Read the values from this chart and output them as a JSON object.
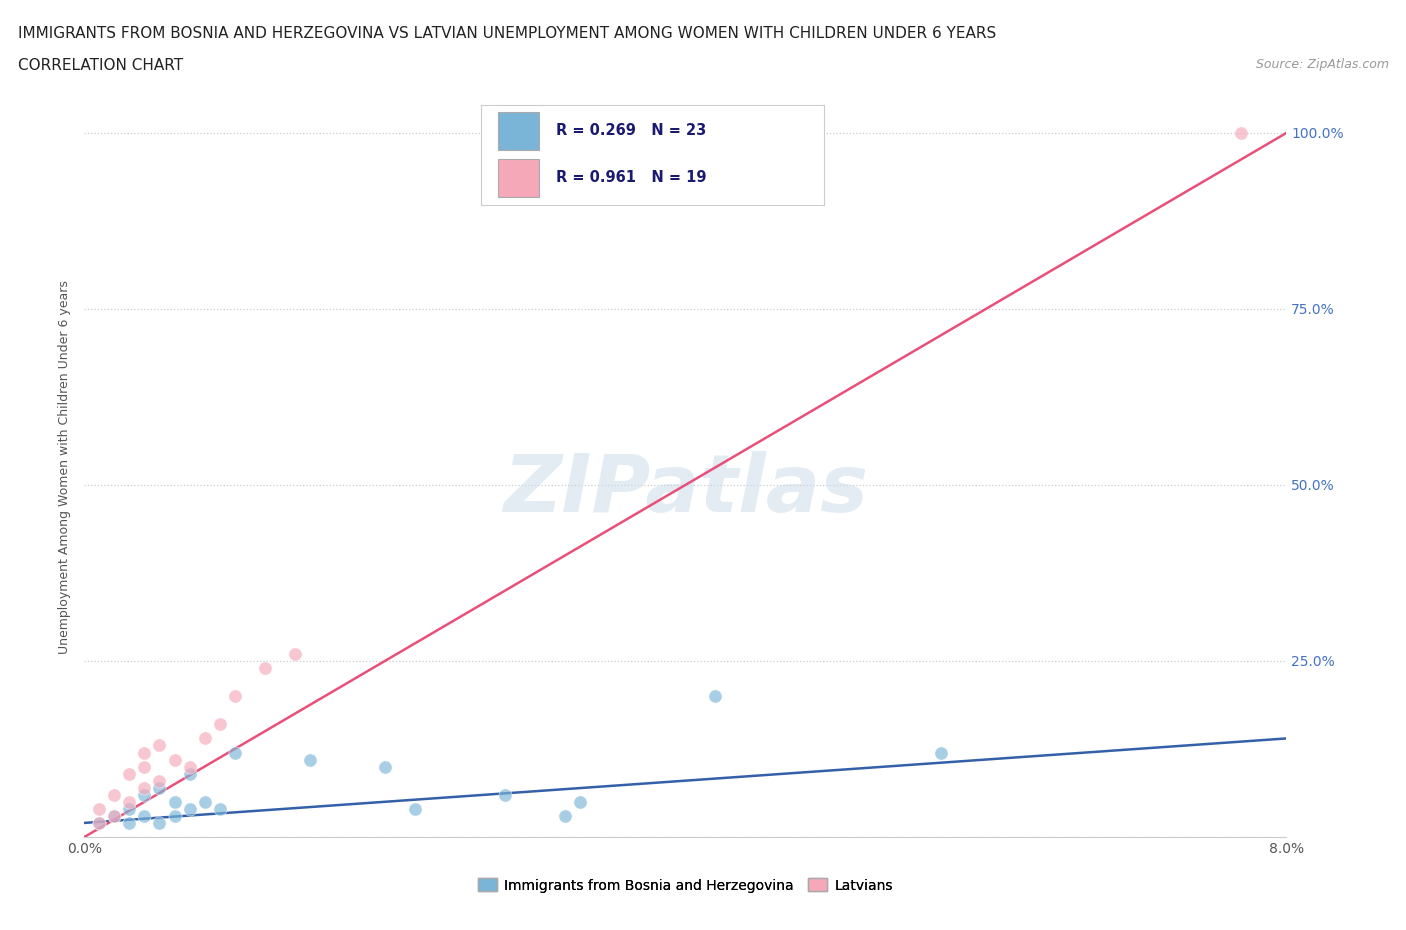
{
  "title": "IMMIGRANTS FROM BOSNIA AND HERZEGOVINA VS LATVIAN UNEMPLOYMENT AMONG WOMEN WITH CHILDREN UNDER 6 YEARS",
  "subtitle": "CORRELATION CHART",
  "source": "Source: ZipAtlas.com",
  "ylabel": "Unemployment Among Women with Children Under 6 years",
  "xlim": [
    0.0,
    0.08
  ],
  "ylim": [
    0.0,
    1.05
  ],
  "xtick_values": [
    0.0,
    0.01,
    0.02,
    0.03,
    0.04,
    0.05,
    0.06,
    0.07,
    0.08
  ],
  "ytick_values": [
    0.0,
    0.25,
    0.5,
    0.75,
    1.0
  ],
  "ytick_labels": [
    "",
    "25.0%",
    "50.0%",
    "75.0%",
    "100.0%"
  ],
  "blue_scatter_x": [
    0.001,
    0.002,
    0.003,
    0.003,
    0.004,
    0.004,
    0.005,
    0.005,
    0.006,
    0.006,
    0.007,
    0.007,
    0.008,
    0.009,
    0.01,
    0.015,
    0.02,
    0.022,
    0.028,
    0.032,
    0.033,
    0.042,
    0.057
  ],
  "blue_scatter_y": [
    0.02,
    0.03,
    0.02,
    0.04,
    0.03,
    0.06,
    0.02,
    0.07,
    0.03,
    0.05,
    0.04,
    0.09,
    0.05,
    0.04,
    0.12,
    0.11,
    0.1,
    0.04,
    0.06,
    0.03,
    0.05,
    0.2,
    0.12
  ],
  "pink_scatter_x": [
    0.001,
    0.001,
    0.002,
    0.002,
    0.003,
    0.003,
    0.004,
    0.004,
    0.004,
    0.005,
    0.005,
    0.006,
    0.007,
    0.008,
    0.009,
    0.01,
    0.012,
    0.014,
    0.077
  ],
  "pink_scatter_y": [
    0.02,
    0.04,
    0.03,
    0.06,
    0.05,
    0.09,
    0.07,
    0.1,
    0.12,
    0.08,
    0.13,
    0.11,
    0.1,
    0.14,
    0.16,
    0.2,
    0.24,
    0.26,
    1.0
  ],
  "blue_line_x": [
    0.0,
    0.08
  ],
  "blue_line_y": [
    0.02,
    0.14
  ],
  "pink_line_x": [
    0.0,
    0.08
  ],
  "pink_line_y": [
    0.0,
    1.0
  ],
  "blue_scatter_color": "#7ab5d8",
  "pink_scatter_color": "#f4a8b8",
  "blue_line_color": "#3460a8",
  "pink_line_color": "#e8507a",
  "watermark": "ZIPatlas",
  "legend_label_blue": "Immigrants from Bosnia and Herzegovina",
  "legend_label_pink": "Latvians",
  "r_blue": "R = 0.269",
  "n_blue": "N = 23",
  "r_pink": "R = 0.961",
  "n_pink": "N = 19"
}
